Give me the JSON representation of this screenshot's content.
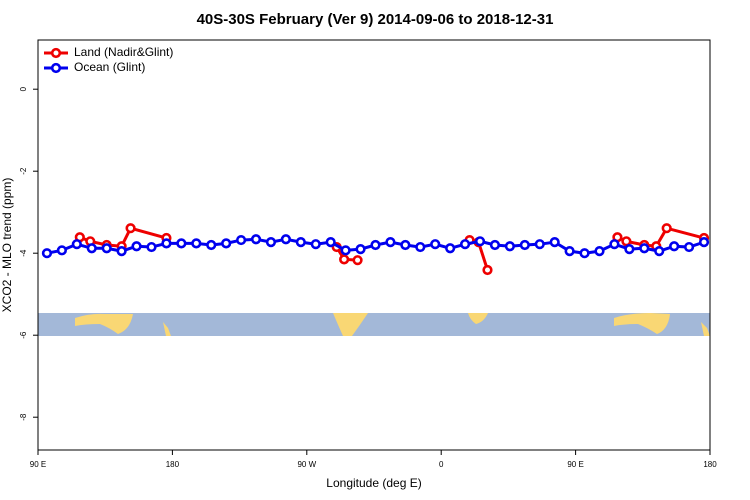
{
  "chart_data": {
    "type": "line",
    "title": "40S-30S February (Ver 9)   2014-09-06 to 2018-12-31",
    "x_label": "Longitude (deg E)",
    "y_label": "XCO2 - MLO trend (ppm)",
    "xlim": [
      90,
      540
    ],
    "ylim": [
      -8.8,
      1.2
    ],
    "xticks": [
      {
        "value": 90,
        "label": "90 E"
      },
      {
        "value": 180,
        "label": "180"
      },
      {
        "value": 270,
        "label": "90 W"
      },
      {
        "value": 360,
        "label": "0"
      },
      {
        "value": 450,
        "label": "90 E"
      },
      {
        "value": 540,
        "label": "180"
      }
    ],
    "yticks": [
      0,
      -2,
      -4,
      -6,
      -8
    ],
    "legend": "top-left",
    "series": [
      {
        "name": "Land (Nadir&Glint)",
        "color": "#ee0000",
        "x": [
          118,
          125,
          136,
          146,
          152,
          176,
          null,
          290,
          295,
          304,
          null,
          379,
          385,
          391,
          null,
          478,
          484,
          496,
          504,
          511,
          536
        ],
        "values": [
          -3.61,
          -3.71,
          -3.8,
          -3.83,
          -3.39,
          -3.63,
          null,
          -3.85,
          -4.15,
          -4.17,
          null,
          -3.68,
          -3.73,
          -4.41,
          null,
          -3.61,
          -3.71,
          -3.8,
          -3.83,
          -3.39,
          -3.63
        ]
      },
      {
        "name": "Ocean (Glint)",
        "color": "#0000ee",
        "x": [
          96,
          106,
          116,
          126,
          136,
          146,
          156,
          166,
          176,
          186,
          196,
          206,
          216,
          226,
          236,
          246,
          256,
          266,
          276,
          286,
          296,
          306,
          316,
          326,
          336,
          346,
          356,
          366,
          376,
          386,
          396,
          406,
          416,
          426,
          436,
          446,
          456,
          466,
          476,
          486,
          496,
          506,
          516,
          526,
          536
        ],
        "values": [
          -4.0,
          -3.93,
          -3.78,
          -3.88,
          -3.88,
          -3.95,
          -3.83,
          -3.85,
          -3.76,
          -3.76,
          -3.76,
          -3.8,
          -3.76,
          -3.68,
          -3.66,
          -3.73,
          -3.66,
          -3.73,
          -3.78,
          -3.73,
          -3.93,
          -3.9,
          -3.8,
          -3.73,
          -3.8,
          -3.85,
          -3.78,
          -3.88,
          -3.78,
          -3.71,
          -3.8,
          -3.83,
          -3.8,
          -3.78,
          -3.73,
          -3.95,
          -4.0,
          -3.95,
          -3.78,
          -3.9,
          -3.88,
          -3.95,
          -3.83,
          -3.85,
          -3.73
        ]
      }
    ]
  }
}
